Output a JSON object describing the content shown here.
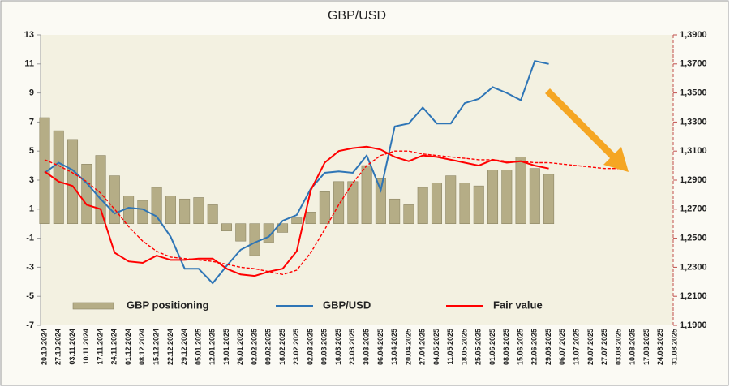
{
  "chart_data": {
    "type": "bar",
    "title": "GBP/USD",
    "categories": [
      "20.10.2024",
      "27.10.2024",
      "03.11.2024",
      "10.11.2024",
      "17.11.2024",
      "24.11.2024",
      "01.12.2024",
      "08.12.2024",
      "15.12.2024",
      "22.12.2024",
      "29.12.2024",
      "05.01.2025",
      "12.01.2025",
      "19.01.2025",
      "26.01.2025",
      "02.02.2025",
      "09.02.2025",
      "16.02.2025",
      "23.02.2025",
      "02.03.2025",
      "09.03.2025",
      "16.03.2025",
      "23.03.2025",
      "30.03.2025",
      "06.04.2025",
      "13.04.2025",
      "20.04.2025",
      "27.04.2025",
      "04.05.2025",
      "11.05.2025",
      "18.05.2025",
      "25.05.2025",
      "01.06.2025",
      "08.06.2025",
      "15.06.2025",
      "22.06.2025",
      "29.06.2025",
      "06.07.2025",
      "13.07.2025",
      "20.07.2025",
      "27.07.2025",
      "03.08.2025",
      "10.08.2025",
      "17.08.2025",
      "24.08.2025",
      "31.08.2025"
    ],
    "series": [
      {
        "name": "GBP positioning",
        "type": "bar",
        "color": "#b5ad86",
        "values": [
          7.3,
          6.4,
          5.8,
          4.1,
          4.7,
          3.3,
          1.9,
          1.6,
          2.5,
          1.9,
          1.7,
          1.8,
          1.3,
          -0.5,
          -1.2,
          -2.2,
          -1.3,
          -0.6,
          0.4,
          0.8,
          2.2,
          2.9,
          2.9,
          4.0,
          3.1,
          1.7,
          1.3,
          2.5,
          2.8,
          3.3,
          2.8,
          2.6,
          3.7,
          3.7,
          4.6,
          3.8,
          3.4,
          null,
          null,
          null,
          null,
          null,
          null,
          null,
          null,
          null
        ]
      },
      {
        "name": "GBP/USD",
        "type": "line",
        "axis": "y2",
        "color": "#2e75b6",
        "values": [
          1.295,
          1.302,
          1.297,
          1.288,
          1.277,
          1.267,
          1.271,
          1.27,
          1.265,
          1.251,
          1.229,
          1.229,
          1.219,
          1.231,
          1.242,
          1.247,
          1.251,
          1.262,
          1.266,
          1.284,
          1.295,
          1.296,
          1.295,
          1.307,
          1.283,
          1.327,
          1.329,
          1.34,
          1.329,
          1.329,
          1.343,
          1.346,
          1.354,
          1.35,
          1.345,
          1.372,
          1.37,
          null,
          null,
          null,
          null,
          null,
          null,
          null,
          null,
          null
        ]
      },
      {
        "name": "Fair value",
        "type": "line",
        "axis": "y2",
        "color": "#ff0000",
        "values": [
          1.296,
          1.289,
          1.286,
          1.273,
          1.27,
          1.24,
          1.234,
          1.233,
          1.238,
          1.235,
          1.235,
          1.236,
          1.236,
          1.229,
          1.225,
          1.224,
          1.227,
          1.229,
          1.241,
          1.283,
          1.302,
          1.31,
          1.312,
          1.313,
          1.311,
          1.306,
          1.303,
          1.307,
          1.306,
          1.304,
          1.302,
          1.3,
          1.304,
          1.302,
          1.303,
          1.3,
          1.298,
          null,
          null,
          null,
          null,
          null,
          null,
          null,
          null,
          null
        ]
      },
      {
        "type": "line",
        "axis": "y2",
        "color": "#ff0000",
        "dashed": true,
        "values": [
          1.304,
          1.3,
          1.295,
          1.289,
          1.281,
          1.27,
          1.258,
          1.248,
          1.241,
          1.237,
          1.236,
          1.235,
          1.234,
          1.232,
          1.23,
          1.229,
          1.227,
          1.225,
          1.228,
          1.24,
          1.256,
          1.273,
          1.288,
          1.3,
          1.307,
          1.31,
          1.31,
          1.308,
          1.307,
          1.306,
          1.305,
          1.304,
          1.304,
          1.303,
          1.303,
          1.302,
          1.302,
          1.301,
          1.3,
          1.299,
          1.298,
          1.298,
          null,
          null,
          null,
          null
        ]
      }
    ],
    "ylim": [
      -7,
      13
    ],
    "yticks": [
      -7,
      -5,
      -3,
      -1,
      1,
      3,
      5,
      7,
      9,
      11,
      13
    ],
    "y2lim": [
      1.19,
      1.39
    ],
    "y2ticks": [
      {
        "value": 1.19,
        "label": "1,1900"
      },
      {
        "value": 1.21,
        "label": "1,2100"
      },
      {
        "value": 1.23,
        "label": "1,2300"
      },
      {
        "value": 1.25,
        "label": "1,2500"
      },
      {
        "value": 1.27,
        "label": "1,2700"
      },
      {
        "value": 1.29,
        "label": "1,2900"
      },
      {
        "value": 1.31,
        "label": "1,3100"
      },
      {
        "value": 1.33,
        "label": "1,3300"
      },
      {
        "value": 1.35,
        "label": "1,3500"
      },
      {
        "value": 1.37,
        "label": "1,3700"
      },
      {
        "value": 1.39,
        "label": "1,3900"
      }
    ]
  }
}
